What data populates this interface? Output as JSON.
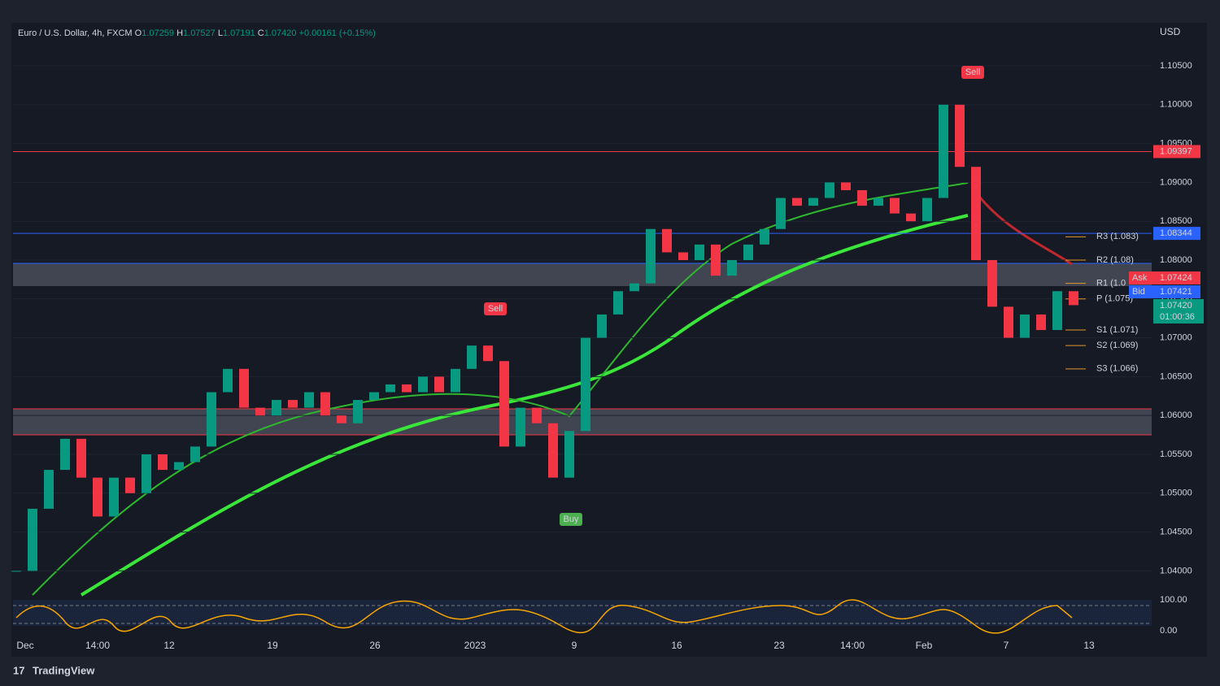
{
  "header": {
    "symbol": "Euro / U.S. Dollar, 4h, FXCM",
    "o_label": "O",
    "o": "1.07259",
    "h_label": "H",
    "h": "1.07527",
    "l_label": "L",
    "l": "1.07191",
    "c_label": "C",
    "c": "1.07420",
    "change": "+0.00161 (+0.15%)"
  },
  "currency": "USD",
  "chart": {
    "ylim": [
      1.0369,
      1.1072
    ],
    "yticks": [
      {
        "value": 1.04,
        "label": "1.04000"
      },
      {
        "value": 1.045,
        "label": "1.04500"
      },
      {
        "value": 1.05,
        "label": "1.05000"
      },
      {
        "value": 1.055,
        "label": "1.05500"
      },
      {
        "value": 1.06,
        "label": "1.06000"
      },
      {
        "value": 1.065,
        "label": "1.06500"
      },
      {
        "value": 1.07,
        "label": "1.07000"
      },
      {
        "value": 1.075,
        "label": "1.07500"
      },
      {
        "value": 1.08,
        "label": "1.08000"
      },
      {
        "value": 1.085,
        "label": "1.08500"
      },
      {
        "value": 1.09,
        "label": "1.09000"
      },
      {
        "value": 1.095,
        "label": "1.09500"
      },
      {
        "value": 1.1,
        "label": "1.10000"
      },
      {
        "value": 1.105,
        "label": "1.10500"
      }
    ],
    "xticks": [
      "Dec",
      "14:00",
      "12",
      "19",
      "26",
      "2023",
      "9",
      "16",
      "23",
      "14:00",
      "Feb",
      "7",
      "13"
    ],
    "levels": [
      {
        "value": 1.09397,
        "label": "1.09397",
        "color": "#f23645"
      },
      {
        "value": 1.08344,
        "label": "1.08344",
        "color": "#2962ff"
      }
    ],
    "pivots": [
      {
        "name": "R3 (1.083)",
        "value": 1.083
      },
      {
        "name": "R2 (1.08)",
        "value": 1.08
      },
      {
        "name": "R1 (1.0",
        "value": 1.077
      },
      {
        "name": "P (1.075)",
        "value": 1.075
      },
      {
        "name": "S1 (1.071)",
        "value": 1.071
      },
      {
        "name": "S2 (1.069)",
        "value": 1.069
      },
      {
        "name": "S3 (1.066)",
        "value": 1.066
      }
    ],
    "ask": {
      "label": "Ask",
      "value": "1.07424"
    },
    "bid": {
      "label": "Bid",
      "value": "1.07421"
    },
    "last": {
      "value": "1.07420",
      "countdown": "01:00:36"
    },
    "signals": [
      {
        "label": "Sell"
      },
      {
        "label": "Sell"
      },
      {
        "label": "Buy"
      }
    ],
    "oscillator": {
      "yticks": [
        "100.00",
        "0.00"
      ]
    },
    "closes": [
      1.04,
      1.048,
      1.053,
      1.057,
      1.052,
      1.047,
      1.052,
      1.05,
      1.055,
      1.053,
      1.054,
      1.056,
      1.063,
      1.066,
      1.061,
      1.06,
      1.062,
      1.061,
      1.063,
      1.06,
      1.059,
      1.062,
      1.063,
      1.064,
      1.063,
      1.065,
      1.063,
      1.066,
      1.069,
      1.067,
      1.056,
      1.061,
      1.059,
      1.052,
      1.058,
      1.07,
      1.073,
      1.076,
      1.077,
      1.084,
      1.081,
      1.08,
      1.082,
      1.078,
      1.08,
      1.082,
      1.084,
      1.088,
      1.087,
      1.088,
      1.09,
      1.089,
      1.087,
      1.088,
      1.086,
      1.085,
      1.088,
      1.1,
      1.092,
      1.08,
      1.074,
      1.07,
      1.073,
      1.071,
      1.076,
      1.0742
    ]
  },
  "footer": {
    "brand": "TradingView"
  }
}
